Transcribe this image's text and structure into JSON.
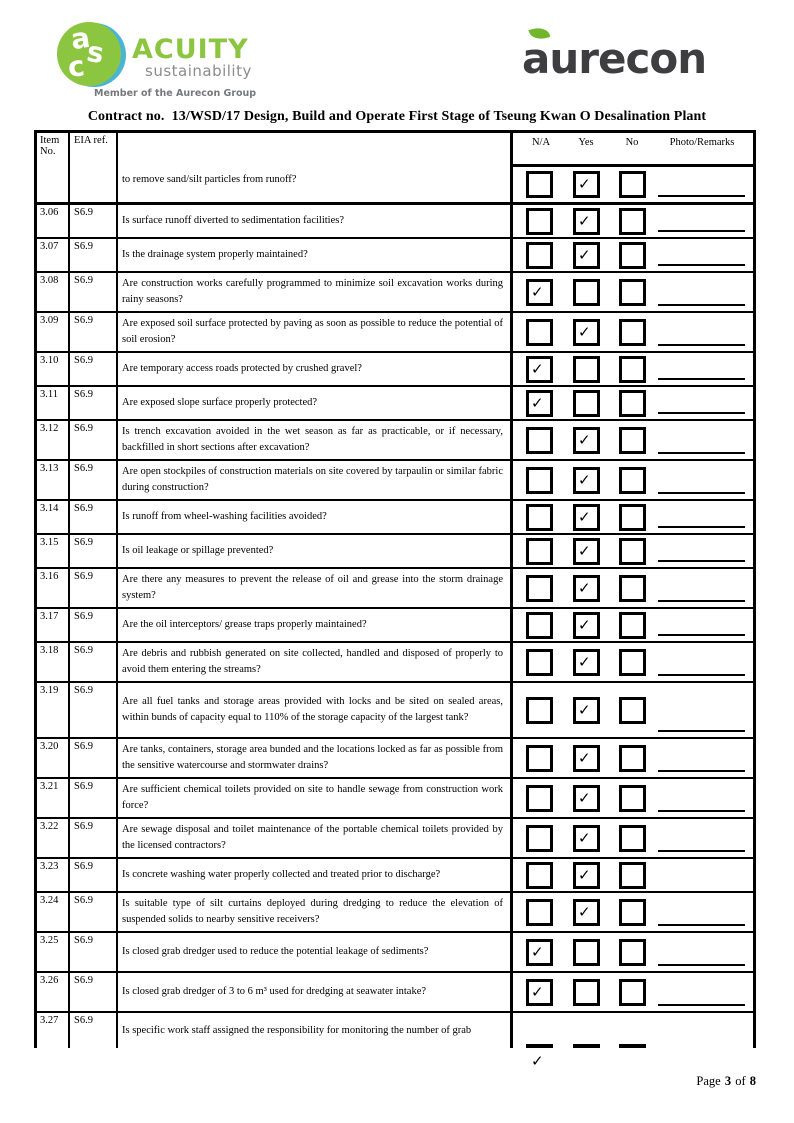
{
  "logos": {
    "acuity": {
      "monogram_letters": [
        "a",
        "s",
        "c"
      ],
      "name": "ACUITY",
      "subtitle": "sustainability",
      "tagline": "Member of the Aurecon Group",
      "green": "#8cc540",
      "blue": "#4ab5d3",
      "gray": "#8a8c8e"
    },
    "aurecon": {
      "name": "aurecon",
      "dark": "#3e3e40",
      "leaf_green": "#71b62c"
    }
  },
  "title": "Contract no.  13/WSD/17 Design, Build and Operate First Stage of Tseung Kwan O Desalination Plant",
  "table": {
    "check_glyph": "✓",
    "col_headers": {
      "item": "Item No.",
      "eia": "EIA ref.",
      "na": "N/A",
      "yes": "Yes",
      "no": "No",
      "remarks": "Photo/Remarks"
    },
    "header_row": {
      "question": "to remove sand/silt particles from runoff?",
      "checked": "yes",
      "remark_line": true
    },
    "rows": [
      {
        "item": "3.06",
        "eia": "S6.9",
        "question": "Is surface runoff diverted to sedimentation facilities?",
        "checked": "yes",
        "remark_line": true,
        "size": "s"
      },
      {
        "item": "3.07",
        "eia": "S6.9",
        "question": "Is the drainage system properly maintained?",
        "checked": "yes",
        "remark_line": true,
        "size": "s"
      },
      {
        "item": "3.08",
        "eia": "S6.9",
        "question": "Are construction works carefully programmed to minimize soil excavation works during rainy seasons?",
        "checked": "na",
        "remark_line": true,
        "size": "d"
      },
      {
        "item": "3.09",
        "eia": "S6.9",
        "question": "Are exposed soil surface protected by paving as soon as possible to reduce the potential of soil erosion?",
        "checked": "yes",
        "remark_line": true,
        "size": "d"
      },
      {
        "item": "3.10",
        "eia": "S6.9",
        "question": "Are temporary access roads protected by crushed gravel?",
        "checked": "na",
        "remark_line": true,
        "size": "s"
      },
      {
        "item": "3.11",
        "eia": "S6.9",
        "question": "Are exposed slope surface properly protected?",
        "checked": "na",
        "remark_line": true,
        "size": "s"
      },
      {
        "item": "3.12",
        "eia": "S6.9",
        "question": "Is trench excavation avoided in the wet season as far as practicable, or if necessary, backfilled in short sections after excavation?",
        "checked": "yes",
        "remark_line": true,
        "size": "d"
      },
      {
        "item": "3.13",
        "eia": "S6.9",
        "question": "Are open stockpiles of construction materials on site covered by tarpaulin or similar fabric during construction?",
        "checked": "yes",
        "remark_line": true,
        "size": "d"
      },
      {
        "item": "3.14",
        "eia": "S6.9",
        "question": "Is runoff from wheel-washing facilities avoided?",
        "checked": "yes",
        "remark_line": true,
        "size": "s"
      },
      {
        "item": "3.15",
        "eia": "S6.9",
        "question": "Is oil leakage or spillage prevented?",
        "checked": "yes",
        "remark_line": true,
        "size": "s"
      },
      {
        "item": "3.16",
        "eia": "S6.9",
        "question": "Are there any measures to prevent the release of oil and grease into the storm drainage system?",
        "checked": "yes",
        "remark_line": true,
        "size": "d"
      },
      {
        "item": "3.17",
        "eia": "S6.9",
        "question": "Are the oil interceptors/ grease traps properly maintained?",
        "checked": "yes",
        "remark_line": true,
        "size": "s"
      },
      {
        "item": "3.18",
        "eia": "S6.9",
        "question": "Are debris and rubbish generated on site collected, handled and disposed of properly to avoid them entering the streams?",
        "checked": "yes",
        "remark_line": true,
        "size": "d"
      },
      {
        "item": "3.19",
        "eia": "S6.9",
        "question": "Are all fuel tanks and storage areas provided with locks and be sited on sealed areas, within bunds of capacity equal to 110% of the storage capacity of the largest tank?",
        "checked": "yes",
        "remark_line": true,
        "size": "t"
      },
      {
        "item": "3.20",
        "eia": "S6.9",
        "question": "Are tanks, containers, storage area bunded and the locations locked as far as possible from the sensitive watercourse and stormwater drains?",
        "checked": "yes",
        "remark_line": true,
        "size": "d"
      },
      {
        "item": "3.21",
        "eia": "S6.9",
        "question": "Are sufficient chemical toilets provided on site to handle sewage from construction work force?",
        "checked": "yes",
        "remark_line": true,
        "size": "d"
      },
      {
        "item": "3.22",
        "eia": "S6.9",
        "question": "Are sewage disposal and toilet maintenance of the portable chemical toilets provided by the licensed contractors?",
        "checked": "yes",
        "remark_line": true,
        "size": "d"
      },
      {
        "item": "3.23",
        "eia": "S6.9",
        "question": "Is concrete washing water properly collected and treated prior to discharge?",
        "checked": "yes",
        "remark_line": false,
        "size": "s"
      },
      {
        "item": "3.24",
        "eia": "S6.9",
        "question": "Is suitable type of silt curtains deployed during dredging to reduce the elevation of suspended solids to nearby sensitive receivers?",
        "checked": "yes",
        "remark_line": true,
        "size": "d"
      },
      {
        "item": "3.25",
        "eia": "S6.9",
        "question": "Is closed grab dredger used to reduce the potential leakage of sediments?",
        "checked": "na",
        "remark_line": true,
        "size": "d"
      },
      {
        "item": "3.26",
        "eia": "S6.9",
        "question": "Is closed grab dredger of 3 to 6 m³ used for dredging at seawater intake?",
        "checked": "na",
        "remark_line": true,
        "size": "d"
      },
      {
        "item": "3.27",
        "eia": "S6.9",
        "question": "Is specific work staff assigned the responsibility for monitoring the number of grab",
        "checked": "na",
        "remark_line": false,
        "size": "clipped"
      }
    ]
  },
  "footer": {
    "word_page": "Page",
    "number": "3",
    "word_of": "of",
    "total": "8"
  }
}
